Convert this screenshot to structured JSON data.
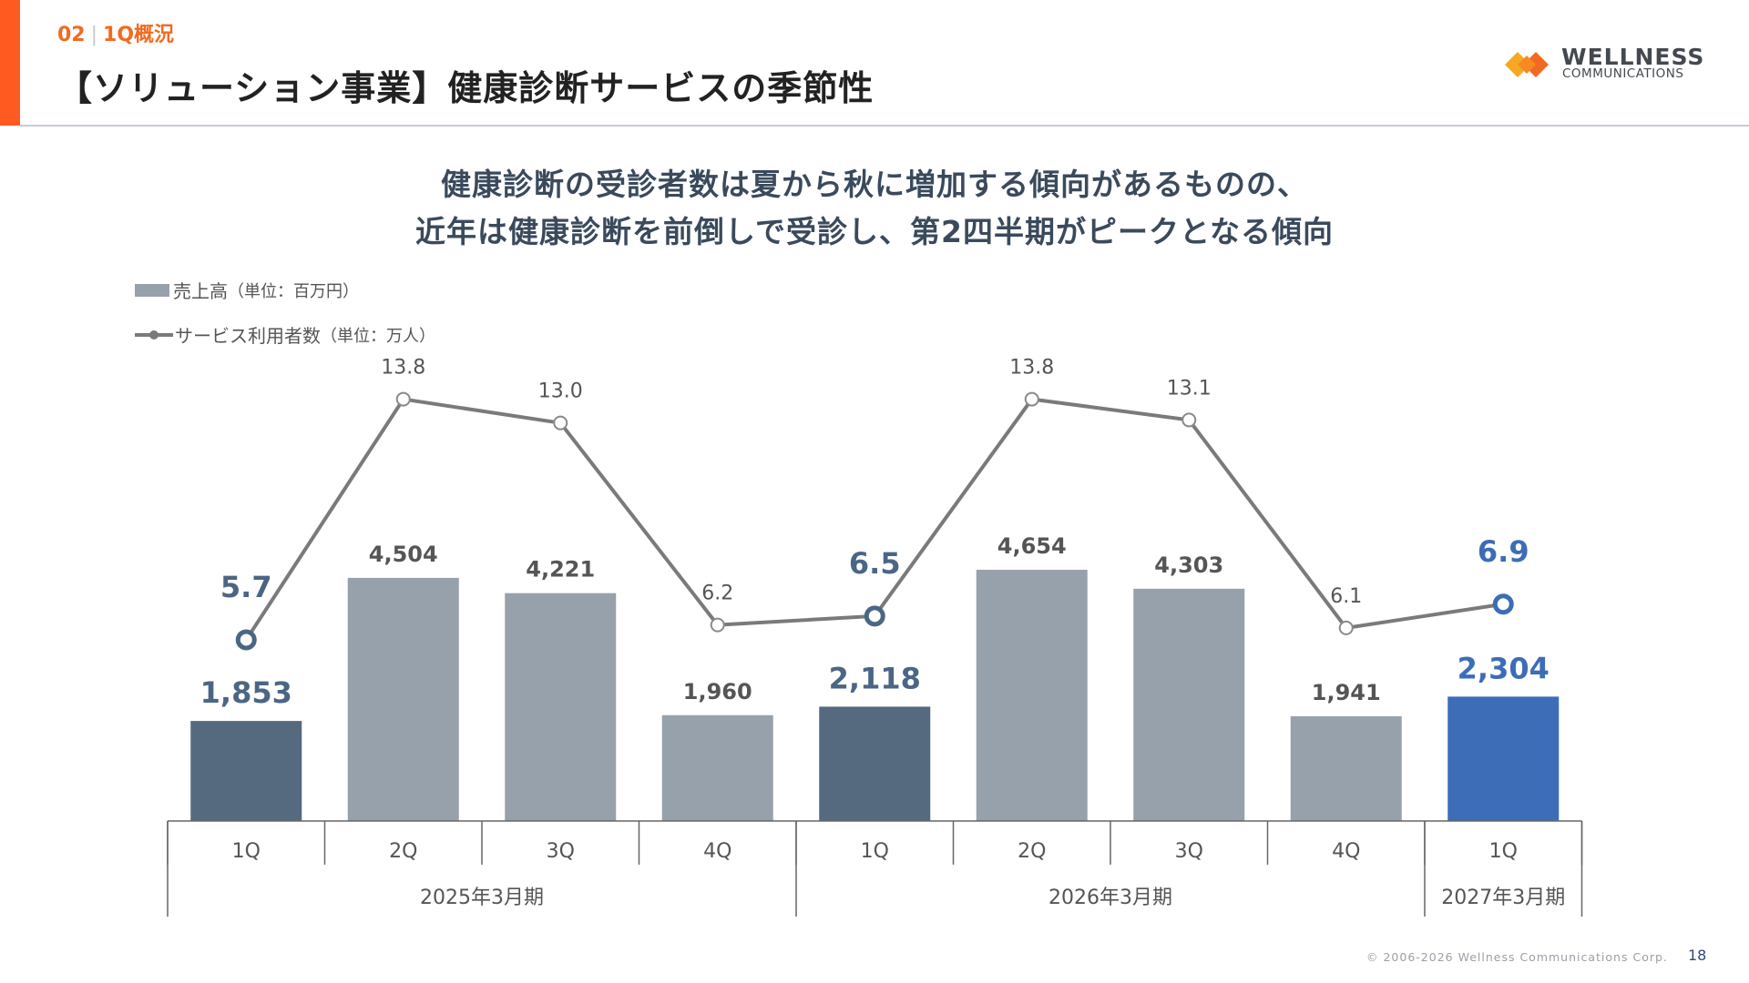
{
  "header": {
    "section_number": "02",
    "section_name": "1Q概況",
    "title": "【ソリューション事業】健康診断サービスの季節性"
  },
  "logo": {
    "name": "WELLNESS",
    "subname": "COMMUNICATIONS"
  },
  "headline": {
    "line1": "健康診断の受診者数は夏から秋に増加する傾向があるものの、",
    "line2": "近年は健康診断を前倒しで受診し、第2四半期がピークとなる傾向"
  },
  "legend": {
    "bar_label": "売上高",
    "bar_unit": "（単位：百万円）",
    "line_label": "サービス利用者数",
    "line_unit": "（単位：万人）"
  },
  "chart_data": {
    "type": "bar",
    "categories": [
      "1Q",
      "2Q",
      "3Q",
      "4Q",
      "1Q",
      "2Q",
      "3Q",
      "4Q",
      "1Q"
    ],
    "groups": [
      {
        "label": "2025年3月期",
        "count": 4
      },
      {
        "label": "2026年3月期",
        "count": 4
      },
      {
        "label": "2027年3月期",
        "count": 1
      }
    ],
    "series": [
      {
        "name": "売上高",
        "type": "bar",
        "values": [
          1853,
          4504,
          4221,
          1960,
          2118,
          4654,
          4303,
          1941,
          2304
        ],
        "labels": [
          "1,853",
          "4,504",
          "4,221",
          "1,960",
          "2,118",
          "4,654",
          "4,303",
          "1,941",
          "2,304"
        ]
      },
      {
        "name": "サービス利用者数",
        "type": "line",
        "values": [
          5.7,
          13.8,
          13.0,
          6.2,
          6.5,
          13.8,
          13.1,
          6.1,
          6.9
        ],
        "labels": [
          "5.7",
          "13.8",
          "13.0",
          "6.2",
          "6.5",
          "13.8",
          "13.1",
          "6.1",
          "6.9"
        ]
      }
    ],
    "highlighted_quarters": [
      0,
      4,
      8
    ],
    "colors": {
      "bar_default": "#97a1ab",
      "bar_highlight": "#55697f",
      "bar_current": "#3d6db6",
      "line": "#7a7a7a",
      "label_default": "#555555",
      "label_highlight": "#4b6684",
      "label_current": "#3d6db6"
    }
  },
  "footer": {
    "copyright": "© 2006-2026 Wellness Communications Corp.",
    "page_number": "18"
  }
}
